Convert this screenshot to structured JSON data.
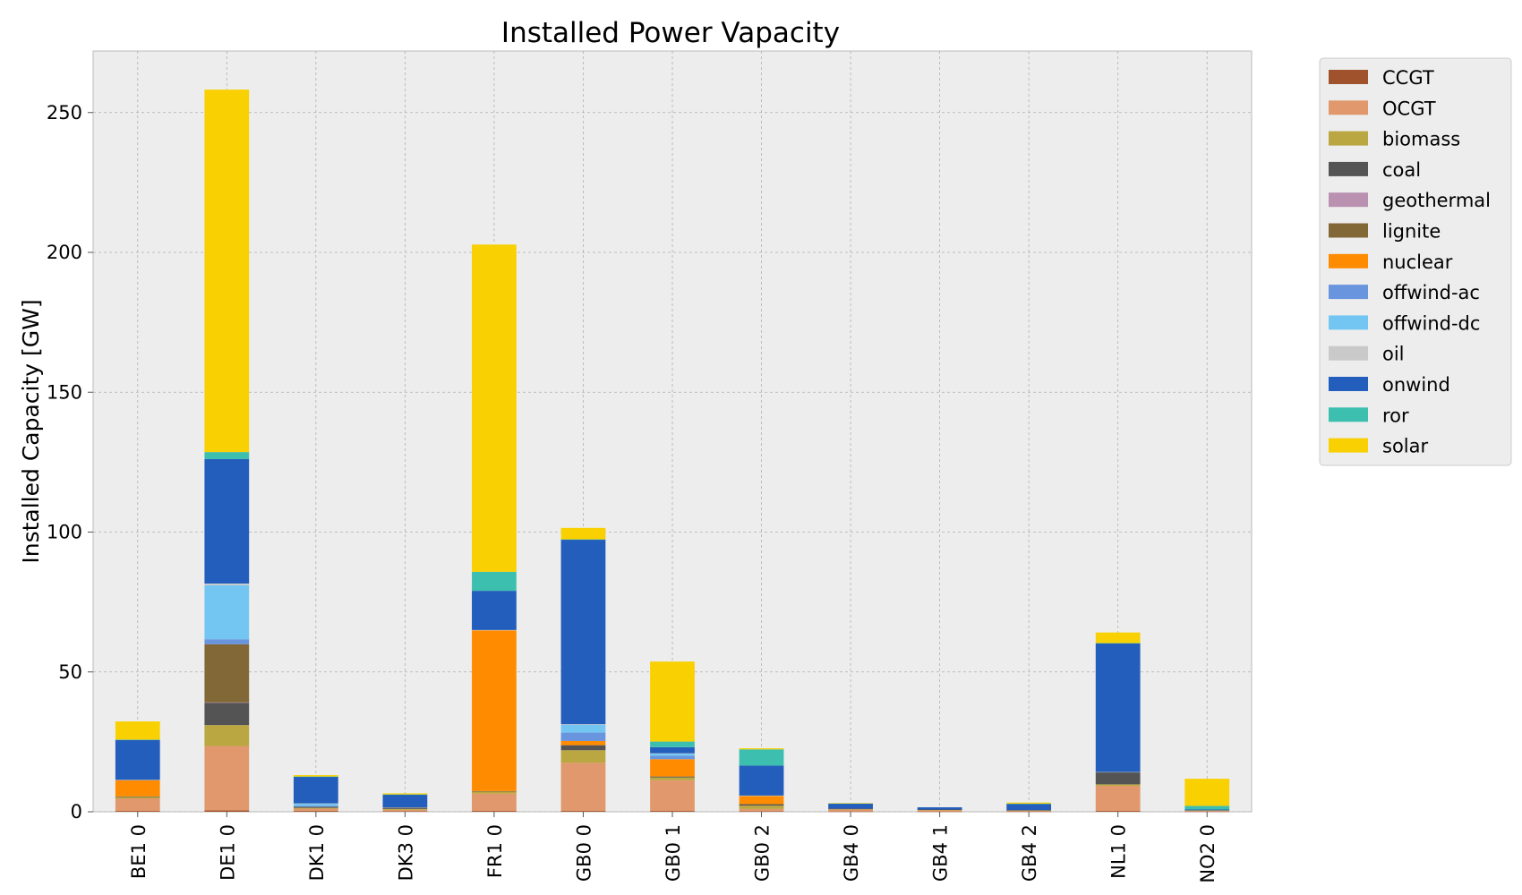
{
  "chart_data": {
    "type": "bar",
    "stacked": true,
    "title": "Installed Power Vapacity",
    "xlabel": "",
    "ylabel": "Installed Capacity [GW]",
    "ylim": [
      0,
      272
    ],
    "yticks": [
      0,
      50,
      100,
      150,
      200,
      250
    ],
    "grid": true,
    "legend_position": "outside-right",
    "categories": [
      "BE1 0",
      "DE1 0",
      "DK1 0",
      "DK3 0",
      "FR1 0",
      "GB0 0",
      "GB0 1",
      "GB0 2",
      "GB4 0",
      "GB4 1",
      "GB4 2",
      "NL1 0",
      "NO2 0"
    ],
    "series": [
      {
        "name": "CCGT",
        "color": "#a0522d",
        "values": [
          0.3,
          0.5,
          0.3,
          0.2,
          0.3,
          0.3,
          0.3,
          0.2,
          0.1,
          0.1,
          0.1,
          0.3,
          0.1
        ]
      },
      {
        "name": "OCGT",
        "color": "#e0986c",
        "values": [
          4.5,
          23.0,
          0.8,
          0.5,
          6.2,
          17.2,
          11.0,
          0.8,
          0.8,
          0.5,
          0.3,
          9.0,
          0.3
        ]
      },
      {
        "name": "biomass",
        "color": "#baa741",
        "values": [
          0.5,
          7.5,
          0.3,
          0.3,
          0.8,
          4.5,
          1.0,
          1.2,
          0.1,
          0.1,
          0.1,
          0.5,
          0.1
        ]
      },
      {
        "name": "coal",
        "color": "#545454",
        "values": [
          0.2,
          8.0,
          0.4,
          0.5,
          0.1,
          1.8,
          0.3,
          0.5,
          0.1,
          0.1,
          0.1,
          4.3,
          0.0
        ]
      },
      {
        "name": "geothermal",
        "color": "#ba91b1",
        "values": [
          0.0,
          0.1,
          0.0,
          0.0,
          0.0,
          0.0,
          0.0,
          0.0,
          0.0,
          0.0,
          0.0,
          0.0,
          0.0
        ]
      },
      {
        "name": "lignite",
        "color": "#826837",
        "values": [
          0.0,
          20.8,
          0.0,
          0.0,
          0.0,
          0.0,
          0.0,
          0.0,
          0.0,
          0.0,
          0.0,
          0.0,
          0.0
        ]
      },
      {
        "name": "nuclear",
        "color": "#ff8c00",
        "values": [
          5.8,
          0.0,
          0.0,
          0.0,
          57.5,
          1.5,
          6.2,
          3.0,
          0.0,
          0.0,
          0.0,
          0.0,
          0.0
        ]
      },
      {
        "name": "offwind-ac",
        "color": "#6895dd",
        "values": [
          0.0,
          1.8,
          0.3,
          0.0,
          0.0,
          3.0,
          1.2,
          0.0,
          0.0,
          0.0,
          0.0,
          0.0,
          0.0
        ]
      },
      {
        "name": "offwind-dc",
        "color": "#74c6f2",
        "values": [
          0.0,
          19.3,
          0.8,
          0.0,
          0.0,
          2.8,
          0.8,
          0.0,
          0.0,
          0.0,
          0.0,
          0.0,
          0.0
        ]
      },
      {
        "name": "oil",
        "color": "#c9c9c9",
        "values": [
          0.1,
          0.6,
          0.1,
          0.1,
          0.1,
          0.2,
          0.1,
          0.1,
          0.0,
          0.0,
          0.0,
          0.1,
          0.0
        ]
      },
      {
        "name": "onwind",
        "color": "#235ebc",
        "values": [
          14.3,
          44.5,
          9.5,
          4.5,
          14.0,
          66.0,
          2.2,
          10.7,
          1.8,
          0.8,
          2.2,
          46.0,
          0.3
        ]
      },
      {
        "name": "ror",
        "color": "#3dbfb0",
        "values": [
          0.1,
          2.5,
          0.1,
          0.1,
          6.8,
          0.1,
          2.0,
          5.8,
          0.1,
          0.0,
          0.1,
          0.1,
          1.3
        ]
      },
      {
        "name": "solar",
        "color": "#f9d002",
        "values": [
          6.5,
          129.6,
          0.5,
          0.4,
          117.0,
          4.1,
          28.6,
          0.4,
          0.1,
          0.0,
          0.4,
          3.8,
          9.7
        ]
      }
    ]
  }
}
